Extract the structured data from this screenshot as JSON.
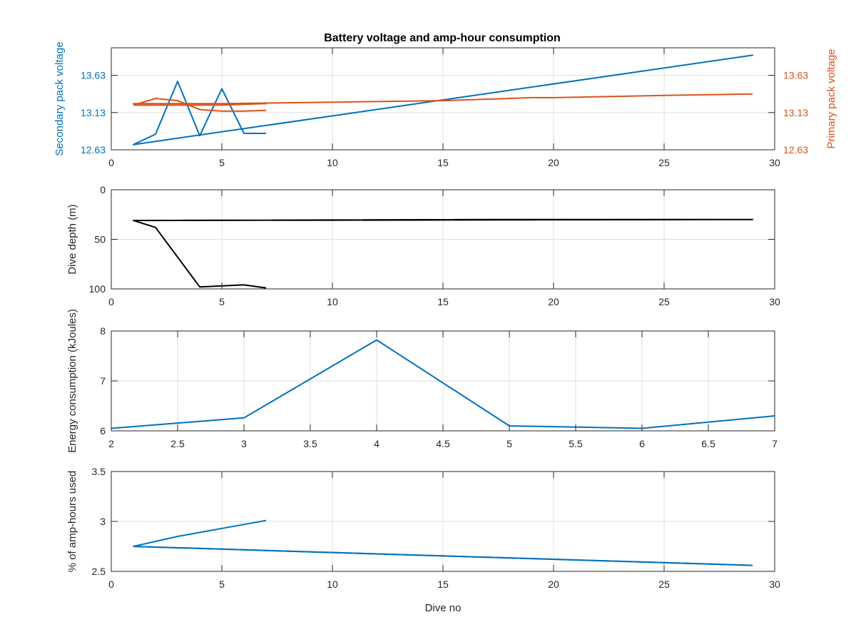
{
  "figure": {
    "title": "Battery voltage and amp-hour consumption"
  },
  "colors": {
    "blue": "#0072BD",
    "orange": "#D95319",
    "black": "#000000",
    "axis": "#262626",
    "grid": "#dfdfdf"
  },
  "chart_data": [
    {
      "type": "line",
      "title": "Battery voltage and amp-hour consumption",
      "xlabel": "",
      "ylabel": "Secondary pack voltage",
      "ylabel_right": "Primary pack voltage",
      "xlim": [
        0,
        30
      ],
      "ylim": [
        12.63,
        14.0
      ],
      "ylim_right": [
        12.63,
        14.0
      ],
      "xticks": [
        "0",
        "5",
        "10",
        "15",
        "20",
        "25",
        "30"
      ],
      "yticks": [
        "12.63",
        "13.13",
        "13.63"
      ],
      "yticks_right": [
        "12.63",
        "13.13",
        "13.63"
      ],
      "grid": true,
      "series": [
        {
          "axis": "left",
          "color": "#0072BD",
          "x": [
            1,
            29,
            29,
            1,
            2,
            3,
            4,
            5,
            6,
            7
          ],
          "y": [
            12.7,
            13.9,
            13.9,
            12.7,
            12.84,
            13.55,
            12.82,
            13.45,
            12.85,
            12.85
          ]
        },
        {
          "axis": "right",
          "color": "#D95319",
          "x": [
            1,
            2,
            3,
            4,
            5,
            6,
            7,
            1,
            5,
            10,
            15,
            18,
            19,
            20,
            25,
            29
          ],
          "y": [
            13.23,
            13.23,
            13.23,
            13.23,
            13.23,
            13.24,
            13.25,
            13.25,
            13.25,
            13.27,
            13.29,
            13.32,
            13.33,
            13.33,
            13.36,
            13.38
          ]
        },
        {
          "axis": "right",
          "color": "#D95319",
          "x": [
            1,
            2,
            3,
            4,
            5,
            6,
            7
          ],
          "y": [
            13.23,
            13.32,
            13.29,
            13.17,
            13.15,
            13.15,
            13.16
          ]
        }
      ]
    },
    {
      "type": "line",
      "xlabel": "",
      "ylabel": "Dive depth (m)",
      "xlim": [
        0,
        30
      ],
      "ylim": [
        0,
        100
      ],
      "reverse_y": true,
      "xticks": [
        "0",
        "5",
        "10",
        "15",
        "20",
        "25",
        "30"
      ],
      "yticks": [
        "0",
        "50",
        "100"
      ],
      "grid": true,
      "series": [
        {
          "color": "#000000",
          "x": [
            1,
            29,
            29,
            18,
            19.5,
            18,
            1,
            2,
            4,
            5,
            6,
            7
          ],
          "y": [
            31,
            30,
            30,
            30,
            30,
            30,
            31,
            38,
            98,
            97,
            96,
            99
          ]
        }
      ]
    },
    {
      "type": "line",
      "xlabel": "",
      "ylabel": "Energy consumption (kJoules)",
      "xlim": [
        2,
        7
      ],
      "ylim": [
        6,
        8
      ],
      "xticks": [
        "2",
        "2.5",
        "3",
        "3.5",
        "4",
        "4.5",
        "5",
        "5.5",
        "6",
        "6.5",
        "7"
      ],
      "yticks": [
        "6",
        "7",
        "8"
      ],
      "grid": true,
      "series": [
        {
          "color": "#0072BD",
          "x": [
            2,
            3,
            4,
            5,
            6,
            7
          ],
          "y": [
            6.05,
            6.26,
            7.82,
            6.1,
            6.05,
            6.3
          ]
        }
      ]
    },
    {
      "type": "line",
      "xlabel": "Dive no",
      "ylabel": "% of amp-hours used",
      "xlim": [
        0,
        30
      ],
      "ylim": [
        2.5,
        3.5
      ],
      "xticks": [
        "0",
        "5",
        "10",
        "15",
        "20",
        "25",
        "30"
      ],
      "yticks": [
        "2.5",
        "3",
        "3.5"
      ],
      "grid": true,
      "series": [
        {
          "color": "#0072BD",
          "x": [
            29,
            1,
            2,
            3,
            4,
            5,
            6,
            7
          ],
          "y": [
            2.56,
            2.75,
            2.8,
            2.85,
            2.89,
            2.93,
            2.97,
            3.01
          ]
        },
        {
          "color": "#0072BD",
          "x": [
            1,
            29
          ],
          "y": [
            2.75,
            2.56
          ]
        }
      ]
    }
  ]
}
